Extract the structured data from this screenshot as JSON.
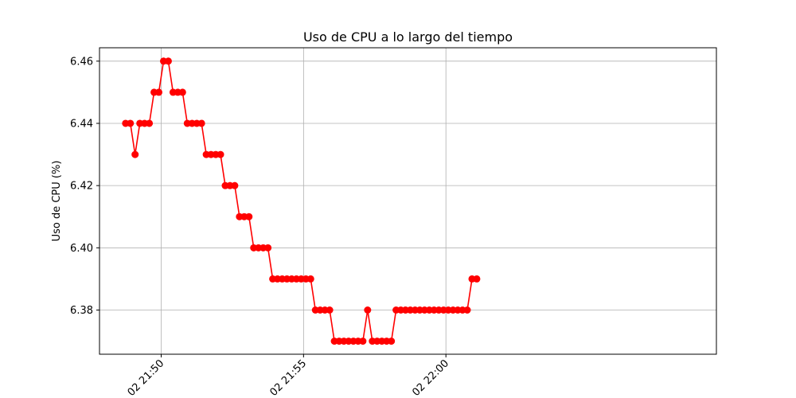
{
  "chart_data": {
    "type": "line",
    "title": "Uso de CPU a lo largo del tiempo",
    "xlabel": "",
    "ylabel": "Uso de CPU (%)",
    "grid": true,
    "line_color": "#ff0000",
    "marker": "circle",
    "x_tick_labels": [
      "02 21:50",
      "02 21:55",
      "02 22:00"
    ],
    "x_tick_seconds": [
      0,
      300,
      600
    ],
    "xlim_seconds": [
      -130,
      1170
    ],
    "y_ticks": [
      6.38,
      6.4,
      6.42,
      6.44,
      6.46
    ],
    "y_tick_labels": [
      "6.38",
      "6.40",
      "6.42",
      "6.44",
      "6.46"
    ],
    "ylim": [
      6.3658,
      6.4643
    ],
    "x_seconds": [
      -75,
      -65,
      -55,
      -45,
      -35,
      -25,
      -15,
      -5,
      5,
      15,
      25,
      35,
      45,
      55,
      65,
      75,
      85,
      95,
      105,
      115,
      125,
      135,
      145,
      155,
      165,
      175,
      185,
      195,
      205,
      215,
      225,
      235,
      245,
      255,
      265,
      275,
      285,
      295,
      305,
      315,
      325,
      335,
      345,
      355,
      365,
      375,
      385,
      395,
      405,
      415,
      425,
      435,
      445,
      455,
      465,
      475,
      485,
      495,
      505,
      515,
      525,
      535,
      545,
      555,
      565,
      575,
      585,
      595,
      605,
      615,
      625,
      635,
      645,
      655,
      665
    ],
    "values": [
      6.44,
      6.44,
      6.43,
      6.44,
      6.44,
      6.44,
      6.45,
      6.45,
      6.46,
      6.46,
      6.45,
      6.45,
      6.45,
      6.44,
      6.44,
      6.44,
      6.44,
      6.43,
      6.43,
      6.43,
      6.43,
      6.42,
      6.42,
      6.42,
      6.41,
      6.41,
      6.41,
      6.4,
      6.4,
      6.4,
      6.4,
      6.39,
      6.39,
      6.39,
      6.39,
      6.39,
      6.39,
      6.39,
      6.39,
      6.39,
      6.38,
      6.38,
      6.38,
      6.38,
      6.37,
      6.37,
      6.37,
      6.37,
      6.37,
      6.37,
      6.37,
      6.38,
      6.37,
      6.37,
      6.37,
      6.37,
      6.37,
      6.38,
      6.38,
      6.38,
      6.38,
      6.38,
      6.38,
      6.38,
      6.38,
      6.38,
      6.38,
      6.38,
      6.38,
      6.38,
      6.38,
      6.38,
      6.38,
      6.39,
      6.39
    ]
  }
}
